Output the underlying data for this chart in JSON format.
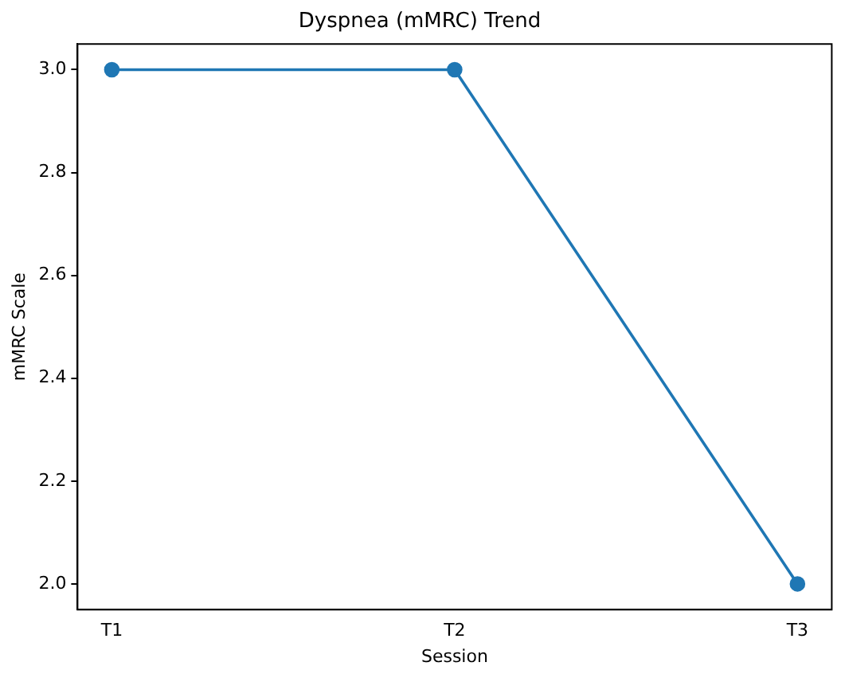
{
  "chart_data": {
    "type": "line",
    "title": "Dyspnea (mMRC) Trend",
    "xlabel": "Session",
    "ylabel": "mMRC Scale",
    "categories": [
      "T1",
      "T2",
      "T3"
    ],
    "series": [
      {
        "color": "#1f77b4",
        "values": [
          3,
          3,
          2
        ]
      }
    ],
    "ylim": [
      1.95,
      3.05
    ],
    "yticks": [
      {
        "value": 2,
        "label": "2.0"
      },
      {
        "value": 2.2,
        "label": "2.2"
      },
      {
        "value": 2.4,
        "label": "2.4"
      },
      {
        "value": 2.6,
        "label": "2.6"
      },
      {
        "value": 2.8,
        "label": "2.8"
      },
      {
        "value": 3,
        "label": "3.0"
      }
    ],
    "grid": false,
    "legend": false,
    "marker": "circle",
    "line_style": "solid"
  }
}
